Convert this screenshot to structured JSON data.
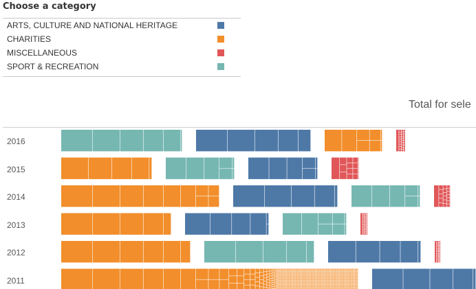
{
  "legend": {
    "title": "Choose a category",
    "items": [
      {
        "label": "ARTS, CULTURE AND NATIONAL HERITAGE",
        "color": "#4e79a7"
      },
      {
        "label": "CHARITIES",
        "color": "#f28e2b"
      },
      {
        "label": "MISCELLANEOUS",
        "color": "#e15759"
      },
      {
        "label": "SPORT & RECREATION",
        "color": "#76b7b2"
      }
    ]
  },
  "chart_data": {
    "type": "bar",
    "title": "Total for sele",
    "categories": [
      "2016",
      "2015",
      "2014",
      "2013",
      "2012",
      "2011"
    ],
    "series": [
      {
        "name": "ARTS, CULTURE AND NATIONAL HERITAGE",
        "values": [
          167,
          101,
          152,
          122,
          135,
          169
        ]
      },
      {
        "name": "CHARITIES",
        "values": [
          84,
          132,
          230,
          160,
          188,
          432
        ]
      },
      {
        "name": "MISCELLANEOUS",
        "values": [
          14,
          40,
          24,
          11,
          9,
          0
        ]
      },
      {
        "name": "SPORT & RECREATION",
        "values": [
          176,
          100,
          100,
          93,
          160,
          0
        ]
      }
    ]
  }
}
